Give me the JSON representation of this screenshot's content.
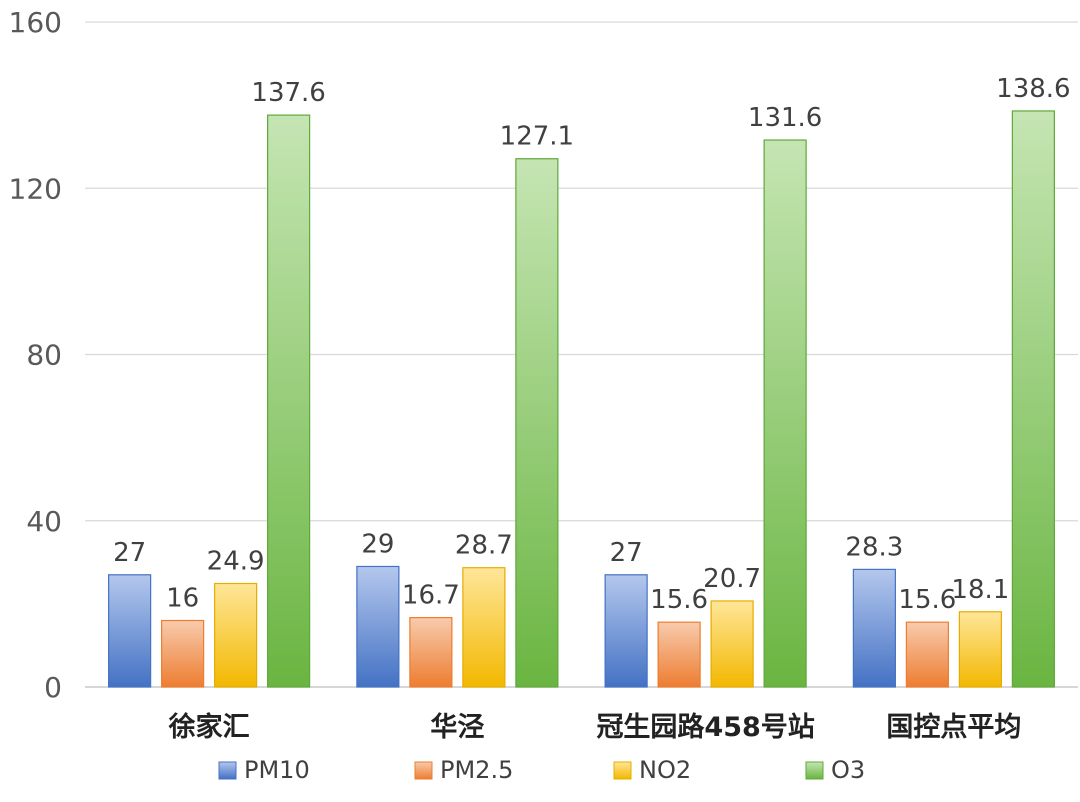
{
  "chart_data": {
    "type": "bar",
    "categories": [
      "徐家汇",
      "华泾",
      "冠生园路458号站",
      "国控点平均"
    ],
    "series": [
      {
        "name": "PM10",
        "values": [
          27,
          29,
          27,
          28.3
        ],
        "labels": [
          "27",
          "29",
          "27",
          "28.3"
        ],
        "color_top": "#b4c7ed",
        "color_bottom": "#4472c4",
        "stroke": "#4472c4"
      },
      {
        "name": "PM2.5",
        "values": [
          16,
          16.7,
          15.6,
          15.6
        ],
        "labels": [
          "16",
          "16.7",
          "15.6",
          "15.6"
        ],
        "color_top": "#f8cbad",
        "color_bottom": "#ed7d31",
        "stroke": "#ed7d31"
      },
      {
        "name": "NO2",
        "values": [
          24.9,
          28.7,
          20.7,
          18.1
        ],
        "labels": [
          "24.9",
          "28.7",
          "20.7",
          "18.1"
        ],
        "color_top": "#ffe699",
        "color_bottom": "#f2b800",
        "stroke": "#e6ac00"
      },
      {
        "name": "O3",
        "values": [
          137.6,
          127.1,
          131.6,
          138.6
        ],
        "labels": [
          "137.6",
          "127.1",
          "131.6",
          "138.6"
        ],
        "color_top": "#c5e5b3",
        "color_bottom": "#6ab541",
        "stroke": "#5fa83a"
      }
    ],
    "ylim": [
      0,
      160
    ],
    "yticks": [
      "0",
      "40",
      "80",
      "120",
      "160"
    ],
    "grid": true,
    "legend_position": "bottom"
  }
}
